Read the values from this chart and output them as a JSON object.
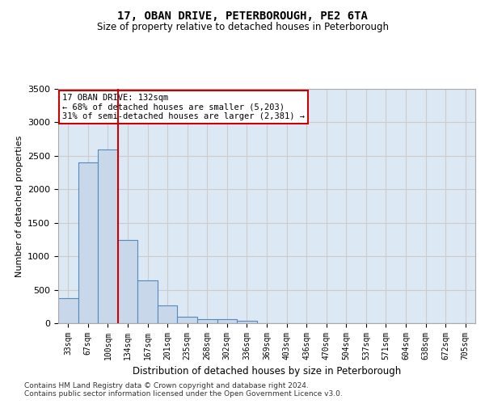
{
  "title": "17, OBAN DRIVE, PETERBOROUGH, PE2 6TA",
  "subtitle": "Size of property relative to detached houses in Peterborough",
  "xlabel": "Distribution of detached houses by size in Peterborough",
  "ylabel": "Number of detached properties",
  "categories": [
    "33sqm",
    "67sqm",
    "100sqm",
    "134sqm",
    "167sqm",
    "201sqm",
    "235sqm",
    "268sqm",
    "302sqm",
    "336sqm",
    "369sqm",
    "403sqm",
    "436sqm",
    "470sqm",
    "504sqm",
    "537sqm",
    "571sqm",
    "604sqm",
    "638sqm",
    "672sqm",
    "705sqm"
  ],
  "values": [
    380,
    2400,
    2600,
    1240,
    640,
    260,
    100,
    60,
    60,
    40,
    0,
    0,
    0,
    0,
    0,
    0,
    0,
    0,
    0,
    0,
    0
  ],
  "bar_color": "#c8d8ea",
  "bar_edge_color": "#5588bb",
  "bar_edge_width": 0.8,
  "red_line_index": 2.5,
  "red_line_color": "#cc0000",
  "annotation_text": "17 OBAN DRIVE: 132sqm\n← 68% of detached houses are smaller (5,203)\n31% of semi-detached houses are larger (2,381) →",
  "annotation_box_color": "#ffffff",
  "annotation_border_color": "#cc0000",
  "ylim": [
    0,
    3500
  ],
  "yticks": [
    0,
    500,
    1000,
    1500,
    2000,
    2500,
    3000,
    3500
  ],
  "grid_color": "#cccccc",
  "bg_color": "#dde8f5",
  "footer1": "Contains HM Land Registry data © Crown copyright and database right 2024.",
  "footer2": "Contains public sector information licensed under the Open Government Licence v3.0."
}
